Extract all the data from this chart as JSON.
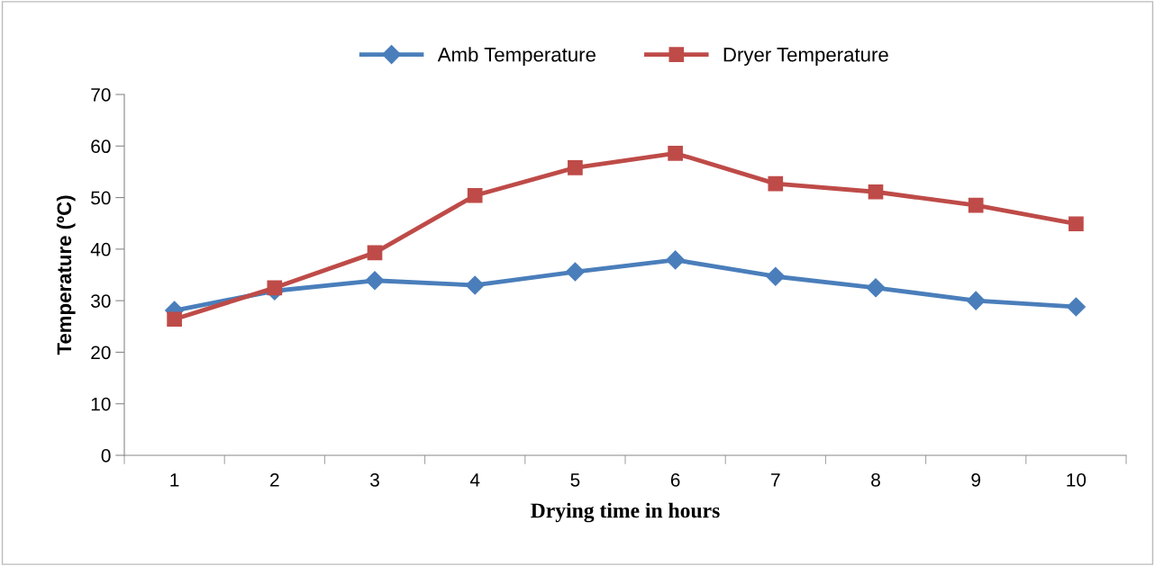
{
  "chart_data": {
    "type": "line",
    "xlabel": "Drying time in hours",
    "ylabel": "Temperature (ºC)",
    "categories": [
      "1",
      "2",
      "3",
      "4",
      "5",
      "6",
      "7",
      "8",
      "9",
      "10"
    ],
    "series": [
      {
        "name": "Amb Temperature",
        "color": "#4a7ebb",
        "marker": "diamond",
        "values": [
          28.1,
          31.9,
          33.9,
          33.0,
          35.6,
          37.9,
          34.7,
          32.5,
          30.0,
          28.8
        ]
      },
      {
        "name": "Dryer Temperature",
        "color": "#be4b48",
        "marker": "square",
        "values": [
          26.4,
          32.5,
          39.3,
          50.4,
          55.8,
          58.6,
          52.7,
          51.1,
          48.5,
          44.9
        ]
      }
    ],
    "ylim": [
      0,
      70
    ],
    "yticks": [
      0,
      10,
      20,
      30,
      40,
      50,
      60,
      70
    ],
    "grid": false,
    "legend": "top",
    "line_style": "solid"
  }
}
